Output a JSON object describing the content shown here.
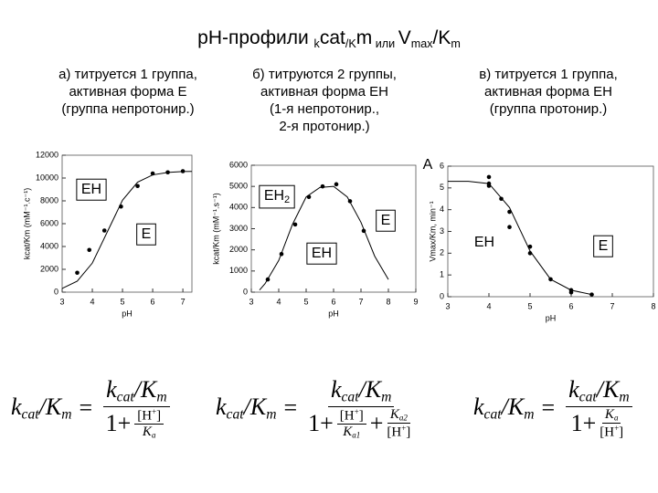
{
  "title": [
    "pH-профили ",
    "k",
    "cat",
    "/K",
    "m",
    " или ",
    "V",
    "max",
    "/K",
    "m"
  ],
  "headings": [
    [
      "а) титруется 1 группа,",
      "активная форма Е",
      "(группа непротонир.)"
    ],
    [
      "б) титруются 2 группы,",
      "активная форма ЕН",
      "(1-я непротонир.,",
      "2-я протонир.)"
    ],
    [
      "в) титруется 1 группа,",
      "активная форма ЕН",
      "(группа протонир.)"
    ]
  ],
  "chart_data": [
    {
      "type": "scatter",
      "x_label": "pH",
      "y_label": "kcat/Km (mM⁻¹.c⁻¹)",
      "xlim": [
        3,
        7.3
      ],
      "xticks": [
        3,
        4,
        5,
        6,
        7
      ],
      "ylim": [
        0,
        12000
      ],
      "yticks": [
        0,
        2000,
        4000,
        6000,
        8000,
        10000,
        12000
      ],
      "series": [
        {
          "mode": "markers",
          "color": "#000000",
          "x": [
            3.5,
            3.9,
            4.4,
            4.95,
            5.5,
            6.0,
            6.5,
            7.0
          ],
          "values": [
            1700,
            3700,
            5400,
            7500,
            9300,
            10400,
            10500,
            10600
          ]
        },
        {
          "mode": "line",
          "color": "#000000",
          "x": [
            3,
            3.5,
            4,
            4.5,
            5,
            5.5,
            6,
            6.5,
            7,
            7.3
          ],
          "values": [
            325,
            964,
            2548,
            5300,
            8055,
            9636,
            10275,
            10494,
            10566,
            10580
          ]
        }
      ],
      "annotations": [
        {
          "text": [
            "EH"
          ],
          "box": true
        },
        {
          "text": [
            "E"
          ],
          "box": true
        }
      ]
    },
    {
      "type": "scatter",
      "x_label": "pH",
      "y_label": "kcat/Km (mM⁻¹.s⁻¹)",
      "xlim": [
        3,
        9
      ],
      "xticks": [
        3,
        4,
        5,
        6,
        7,
        8,
        9
      ],
      "ylim": [
        0,
        6000
      ],
      "yticks": [
        0,
        1000,
        2000,
        3000,
        4000,
        5000,
        6000
      ],
      "series": [
        {
          "mode": "markers",
          "color": "#000000",
          "x": [
            3.6,
            4.1,
            4.6,
            5.1,
            5.6,
            6.1,
            6.6,
            7.1
          ],
          "values": [
            600,
            1800,
            3200,
            4500,
            5000,
            5100,
            4300,
            2900
          ]
        },
        {
          "mode": "line",
          "color": "#000000",
          "x": [
            3.3,
            3.5,
            4,
            4.5,
            5,
            5.5,
            6,
            6.5,
            7,
            7.5,
            8
          ],
          "values": [
            100,
            400,
            1500,
            3200,
            4500,
            4950,
            5000,
            4500,
            3300,
            1700,
            600
          ]
        }
      ],
      "annotations": [
        {
          "text": [
            "EH",
            "2"
          ],
          "box": true
        },
        {
          "text": [
            "E"
          ],
          "box": true
        },
        {
          "text": [
            "EH"
          ],
          "box": true
        }
      ]
    },
    {
      "type": "scatter",
      "x_label": "pH",
      "y_label": "Vmax/Km, min⁻¹",
      "xlim": [
        3,
        8
      ],
      "xticks": [
        3,
        4,
        5,
        6,
        7,
        8
      ],
      "ylim": [
        0,
        6
      ],
      "yticks": [
        0,
        1,
        2,
        3,
        4,
        5,
        6
      ],
      "series": [
        {
          "mode": "markers",
          "color": "#000000",
          "x": [
            4,
            4,
            4,
            4.3,
            4.5,
            4.5,
            5,
            5,
            5.5,
            6,
            6,
            6.5
          ],
          "values": [
            5.5,
            5.2,
            5.1,
            4.5,
            3.9,
            3.2,
            2.3,
            2.0,
            0.8,
            0.3,
            0.2,
            0.1
          ]
        },
        {
          "mode": "line",
          "color": "#000000",
          "x": [
            3,
            3.5,
            4,
            4.5,
            5,
            5.5,
            6,
            6.5
          ],
          "values": [
            5.3,
            5.3,
            5.2,
            4.1,
            2.1,
            0.8,
            0.3,
            0.1
          ]
        }
      ],
      "annotations": [
        {
          "text": [
            "A"
          ],
          "box": false
        },
        {
          "text": [
            "EH"
          ],
          "box": false
        },
        {
          "text": [
            "E"
          ],
          "box": true
        }
      ]
    }
  ],
  "equals": "=",
  "formulas": [
    {
      "lhs": [
        "k",
        "cat",
        "/K",
        "m"
      ],
      "num": [
        "k",
        "cat",
        "/K",
        "m"
      ],
      "one": "1+",
      "f1n": [
        "[H",
        "+",
        "]"
      ],
      "f1d": [
        "K",
        "a"
      ]
    },
    {
      "lhs": [
        "k",
        "cat",
        "/K",
        "m"
      ],
      "num": [
        "k",
        "cat",
        "/K",
        "m"
      ],
      "one": "1+",
      "f1n": [
        "[H",
        "+",
        "]"
      ],
      "f1d": [
        "K",
        "a1"
      ],
      "plus": "+",
      "f2n": [
        "K",
        "a2"
      ],
      "f2d": [
        "[H",
        "+",
        "]"
      ]
    },
    {
      "lhs": [
        "k",
        "cat",
        "/K",
        "m"
      ],
      "num": [
        "k",
        "cat",
        "/K",
        "m"
      ],
      "one": "1+",
      "f1n": [
        "K",
        "a"
      ],
      "f1d": [
        "[H",
        "+",
        "]"
      ]
    }
  ]
}
